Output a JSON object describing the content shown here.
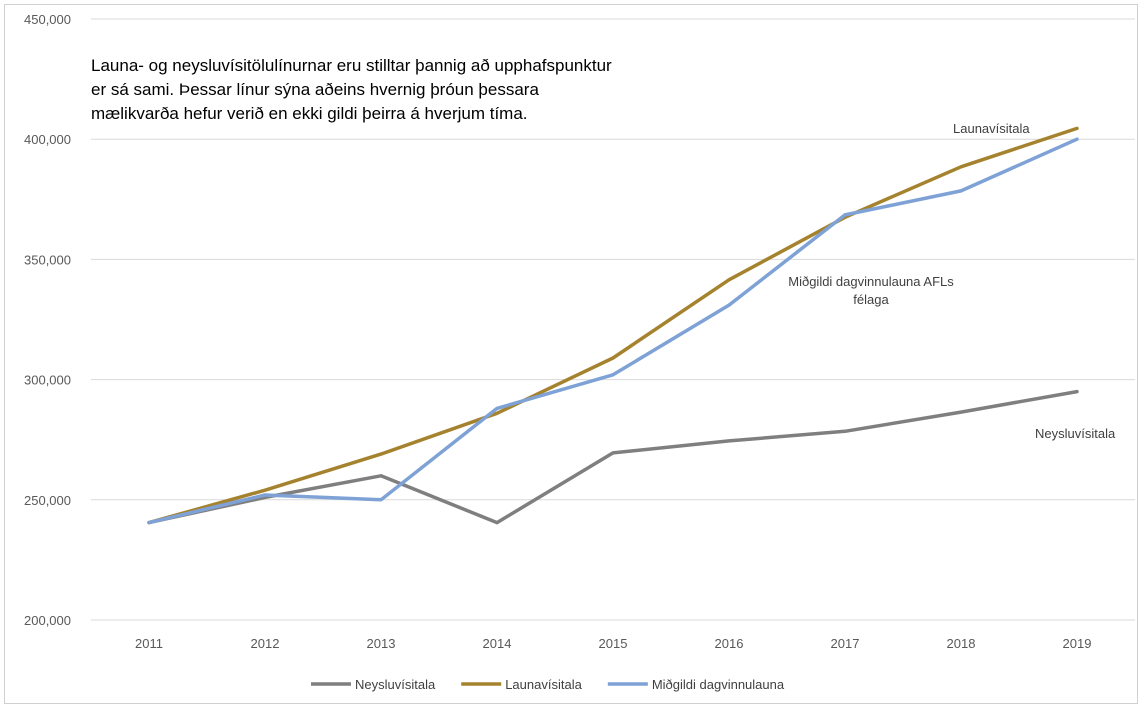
{
  "chart_data": {
    "type": "line",
    "title": "",
    "xlabel": "",
    "ylabel": "",
    "categories": [
      "2011",
      "2012",
      "2013",
      "2014",
      "2015",
      "2016",
      "2017",
      "2018",
      "2019"
    ],
    "ylim": [
      200000,
      450000
    ],
    "yticks": [
      "200,000",
      "250,000",
      "300,000",
      "350,000",
      "400,000",
      "450,000"
    ],
    "grid": "horizontal",
    "legend": "bottom",
    "series": [
      {
        "name": "Neysluvísitala",
        "color": "#7f7f7f",
        "values": [
          240500,
          251000,
          260000,
          240500,
          269500,
          274500,
          278500,
          286500,
          295000
        ]
      },
      {
        "name": "Launavísitala",
        "color": "#a5832e",
        "values": [
          240500,
          254000,
          269000,
          286000,
          309000,
          341500,
          367500,
          388500,
          404500
        ]
      },
      {
        "name": "Miðgildi dagvinnulauna",
        "color": "#7ea1d6",
        "values": [
          240500,
          252000,
          250000,
          288000,
          302000,
          331000,
          368500,
          378500,
          400000
        ]
      }
    ],
    "annotations": {
      "note_lines": [
        "Launa- og neysluvísitölulínurnar eru stilltar þannig að upphafspunktur",
        "er sá sami. Þessar línur sýna aðeins hvernig þróun þessara",
        "mælikvarða hefur verið en ekki gildi þeirra á hverjum tíma."
      ],
      "label_launavisitala": "Launavísitala",
      "label_midgildi_line1": "Miðgildi dagvinnulauna AFLs",
      "label_midgildi_line2": "félaga",
      "label_neysluvisitala": "Neysluvísitala"
    }
  }
}
